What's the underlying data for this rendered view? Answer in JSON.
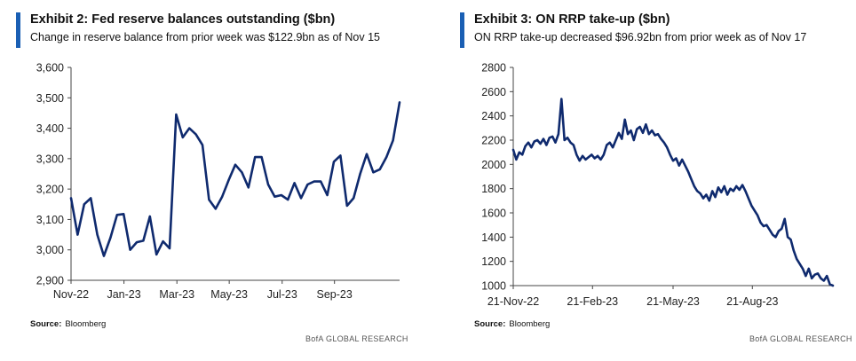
{
  "colors": {
    "accent": "#1a5fb4",
    "series": "#0f2a6e",
    "axis": "#444444"
  },
  "exhibits": [
    {
      "title": "Exhibit 2: Fed reserve balances outstanding ($bn)",
      "subtitle": "Change in reserve balance from prior week was $122.9bn as of Nov 15",
      "source_label": "Source:",
      "source_text": "Bloomberg",
      "brand": "BofA GLOBAL RESEARCH"
    },
    {
      "title": "Exhibit 3: ON RRP take-up ($bn)",
      "subtitle": "ON RRP take-up decreased $96.92bn from prior week as of Nov 17",
      "source_label": "Source:",
      "source_text": "Bloomberg",
      "brand": "BofA GLOBAL RESEARCH"
    }
  ],
  "chart_data": [
    {
      "type": "line",
      "title": "Exhibit 2: Fed reserve balances outstanding ($bn)",
      "subtitle": "Change in reserve balance from prior week was $122.9bn as of Nov 15",
      "xlabel": "",
      "ylabel": "",
      "ylim": [
        2900,
        3600
      ],
      "yticks": [
        2900,
        3000,
        3100,
        3200,
        3300,
        3400,
        3500,
        3600
      ],
      "ytick_labels": [
        "2,900",
        "3,000",
        "3,100",
        "3,200",
        "3,300",
        "3,400",
        "3,500",
        "3,600"
      ],
      "xlim": [
        0,
        54
      ],
      "xticks": [
        0,
        8.7,
        17.4,
        26,
        34.7,
        43.3
      ],
      "xtick_labels": [
        "Nov-22",
        "Jan-23",
        "Mar-23",
        "May-23",
        "Jul-23",
        "Sep-23"
      ],
      "grid": false,
      "series": [
        {
          "values": [
            3170,
            3050,
            3150,
            3170,
            3050,
            2980,
            3040,
            3115,
            3118,
            3000,
            3025,
            3030,
            3110,
            2985,
            3028,
            3005,
            3445,
            3370,
            3400,
            3380,
            3345,
            3165,
            3135,
            3175,
            3230,
            3280,
            3255,
            3205,
            3305,
            3305,
            3215,
            3175,
            3180,
            3165,
            3220,
            3170,
            3215,
            3225,
            3225,
            3180,
            3290,
            3310,
            3145,
            3170,
            3250,
            3315,
            3255,
            3265,
            3305,
            3360,
            3485
          ]
        }
      ]
    },
    {
      "type": "line",
      "title": "Exhibit 3: ON RRP take-up ($bn)",
      "subtitle": "ON RRP take-up decreased $96.92bn from prior week as of Nov 17",
      "xlabel": "",
      "ylabel": "",
      "ylim": [
        1000,
        2800
      ],
      "yticks": [
        1000,
        1200,
        1400,
        1600,
        1800,
        2000,
        2200,
        2400,
        2600,
        2800
      ],
      "ytick_labels": [
        "1000",
        "1200",
        "1400",
        "1600",
        "1800",
        "2000",
        "2200",
        "2400",
        "2600",
        "2800"
      ],
      "xlim": [
        0,
        250
      ],
      "xticks": [
        0,
        62,
        125,
        187
      ],
      "xtick_labels": [
        "21-Nov-22",
        "21-Feb-23",
        "21-May-23",
        "21-Aug-23"
      ],
      "grid": false,
      "series": [
        {
          "values": [
            2120,
            2040,
            2100,
            2080,
            2150,
            2180,
            2140,
            2190,
            2200,
            2170,
            2210,
            2160,
            2220,
            2230,
            2180,
            2250,
            2540,
            2200,
            2220,
            2180,
            2160,
            2080,
            2030,
            2070,
            2040,
            2060,
            2080,
            2050,
            2070,
            2040,
            2080,
            2160,
            2180,
            2140,
            2200,
            2260,
            2210,
            2370,
            2250,
            2280,
            2200,
            2290,
            2310,
            2260,
            2330,
            2250,
            2280,
            2240,
            2250,
            2210,
            2180,
            2140,
            2080,
            2030,
            2050,
            1990,
            2040,
            1990,
            1940,
            1880,
            1820,
            1780,
            1760,
            1720,
            1750,
            1700,
            1780,
            1730,
            1810,
            1770,
            1820,
            1750,
            1800,
            1780,
            1820,
            1790,
            1830,
            1780,
            1720,
            1660,
            1620,
            1580,
            1520,
            1490,
            1500,
            1460,
            1420,
            1400,
            1450,
            1470,
            1550,
            1400,
            1380,
            1290,
            1220,
            1180,
            1140,
            1080,
            1140,
            1060,
            1090,
            1100,
            1060,
            1040,
            1080,
            1010,
            1000
          ]
        }
      ]
    }
  ]
}
